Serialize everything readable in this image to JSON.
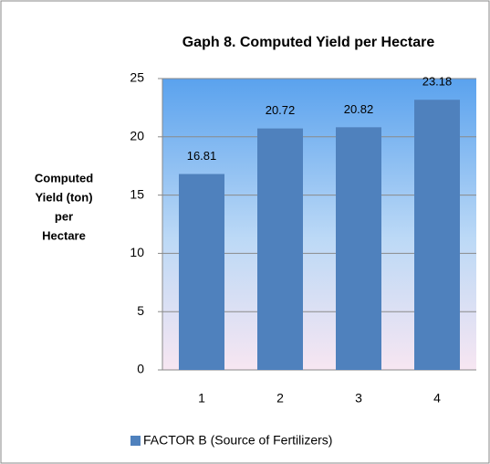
{
  "chart_data": {
    "type": "bar",
    "title": "Gaph 8. Computed Yield per Hectare",
    "ylabel": [
      "Computed",
      "Yield (ton)",
      "per",
      "Hectare"
    ],
    "categories": [
      "1",
      "2",
      "3",
      "4"
    ],
    "series": [
      {
        "name": "FACTOR B (Source of Fertilizers)",
        "color": "#4f81bd",
        "values": [
          16.81,
          20.72,
          20.82,
          23.18
        ]
      }
    ],
    "ylim": [
      0,
      25
    ],
    "yticks": [
      0,
      5,
      10,
      15,
      20,
      25
    ],
    "grid": true,
    "legend": "bottom"
  }
}
